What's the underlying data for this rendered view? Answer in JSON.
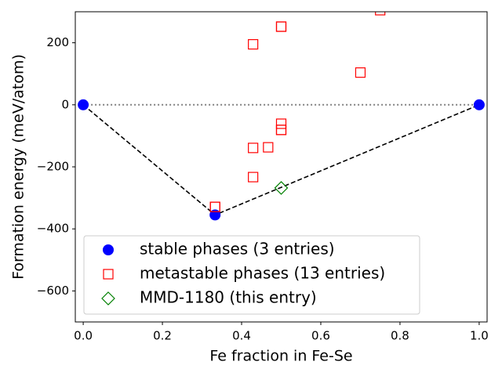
{
  "chart_data": {
    "type": "scatter",
    "x_label": "Fe fraction in Fe-Se",
    "y_label": "Formation energy (meV/atom)",
    "xlim": [
      -0.02,
      1.02
    ],
    "ylim": [
      -700,
      300
    ],
    "xticks": [
      {
        "value": 0,
        "label": "0.0"
      },
      {
        "value": 0.2,
        "label": "0.2"
      },
      {
        "value": 0.4,
        "label": "0.4"
      },
      {
        "value": 0.6,
        "label": "0.6"
      },
      {
        "value": 0.8,
        "label": "0.8"
      },
      {
        "value": 1,
        "label": "1.0"
      }
    ],
    "yticks": [
      {
        "value": -600,
        "label": "−600"
      },
      {
        "value": -400,
        "label": "−400"
      },
      {
        "value": -200,
        "label": "−200"
      },
      0,
      200
    ],
    "hline": 0,
    "legend": "lower left",
    "series": [
      {
        "name": "stable phases (3 entries)",
        "color": "#0000ff",
        "marker": "circle",
        "hull": true,
        "x": [
          0,
          0.333,
          1
        ],
        "values": [
          0,
          -355,
          0
        ]
      },
      {
        "name": "metastable phases (13 entries)",
        "color": "#ff0000",
        "marker": "square",
        "x": [
          0.333,
          0.333,
          0.429,
          0.5,
          0.5,
          0.75,
          0.7,
          0.5,
          0.5,
          0.5,
          0.429,
          0.467,
          0.429
        ],
        "values": [
          -329,
          -329,
          195,
          252,
          252,
          305,
          104,
          -61,
          -81,
          -81,
          -139,
          -137,
          -233
        ]
      },
      {
        "name": "MMD-1180 (this entry)",
        "color": "#008000",
        "marker": "diamond",
        "x": [
          0.5
        ],
        "values": [
          -268
        ]
      }
    ]
  }
}
